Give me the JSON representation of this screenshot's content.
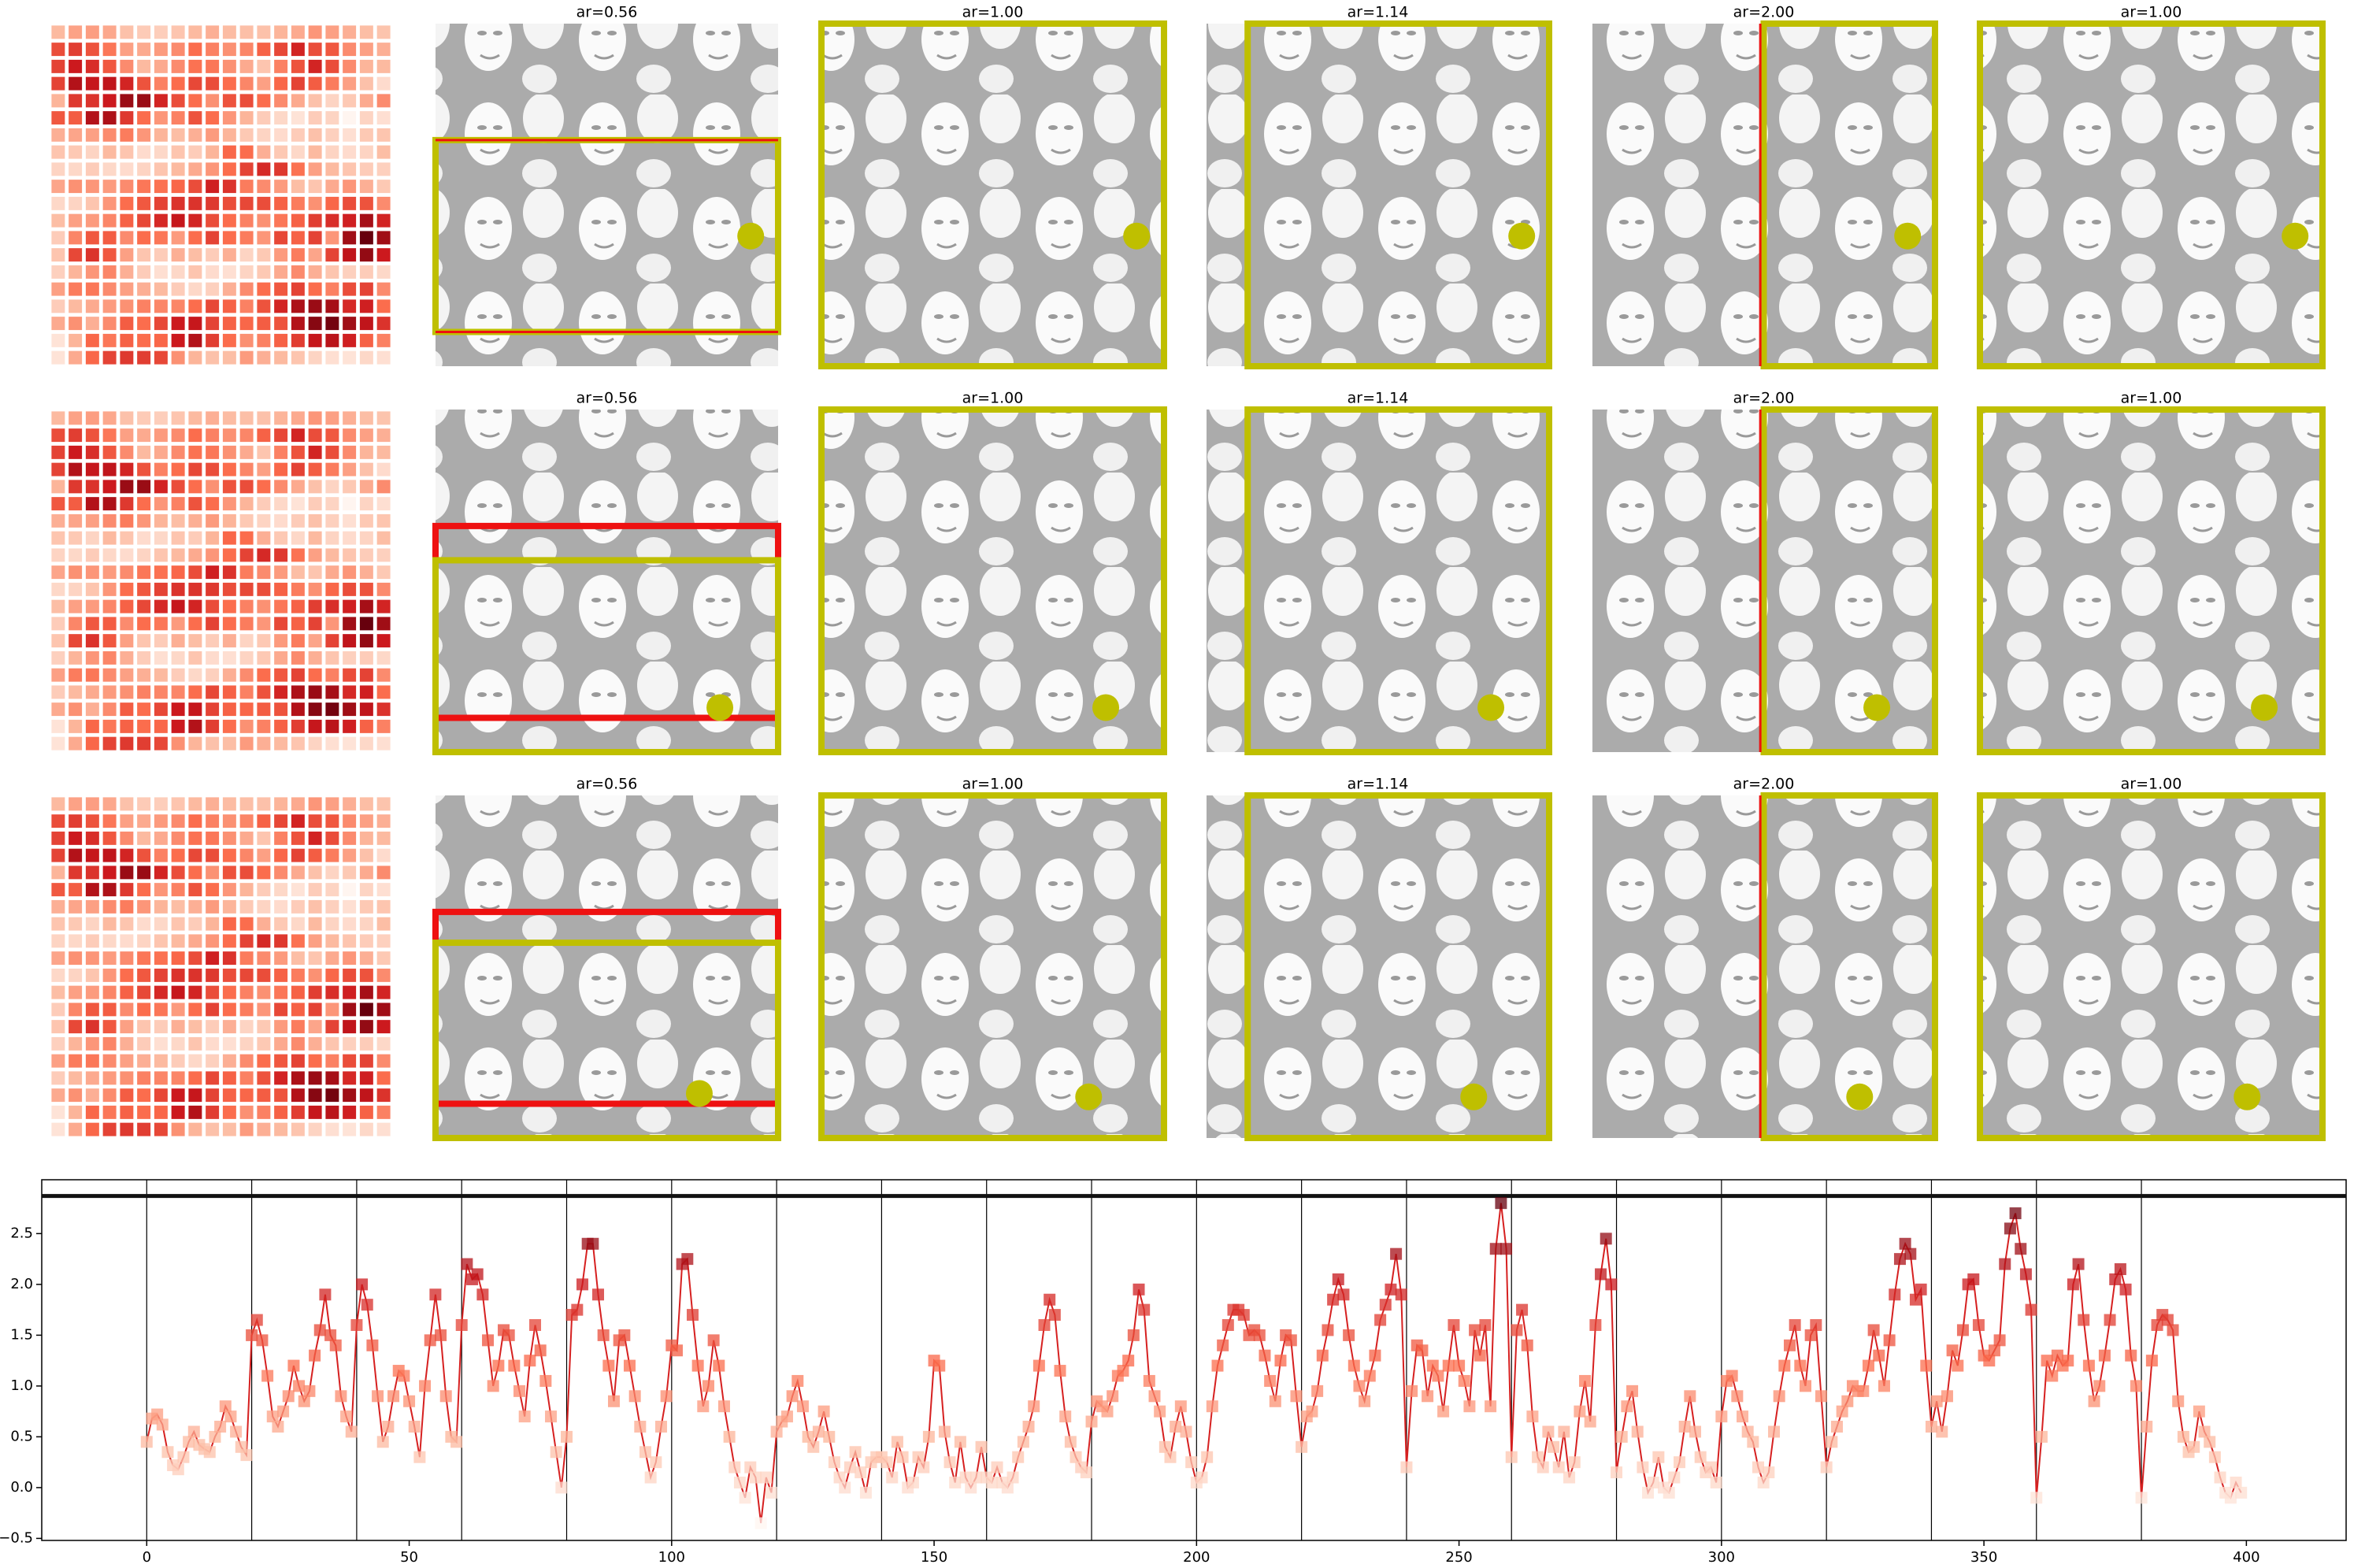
{
  "panel_rows": [
    {
      "titles": [
        "ar=0.56",
        "ar=1.00",
        "ar=1.14",
        "ar=2.00",
        "ar=1.00"
      ]
    },
    {
      "titles": [
        "ar=0.56",
        "ar=1.00",
        "ar=1.14",
        "ar=2.00",
        "ar=1.00"
      ]
    },
    {
      "titles": [
        "ar=0.56",
        "ar=1.00",
        "ar=1.14",
        "ar=2.00",
        "ar=1.00"
      ]
    }
  ],
  "chart_data": {
    "type": "line",
    "colormap": "Reds",
    "line_color": "#d62020",
    "hline": 2.87,
    "vlines": [
      0,
      20,
      40,
      60,
      80,
      100,
      120,
      140,
      160,
      180,
      200,
      220,
      240,
      260,
      280,
      300,
      320,
      340,
      360,
      380
    ],
    "xlim": [
      -20,
      419
    ],
    "ylim": [
      -0.52,
      3.03
    ],
    "xticks": [
      0,
      50,
      100,
      150,
      200,
      250,
      300,
      350,
      400
    ],
    "yticks": [
      {
        "value": -0.5,
        "label": "−0.5"
      },
      {
        "value": 0,
        "label": "0.0"
      },
      0.5,
      {
        "value": 1,
        "label": "1.0"
      },
      1.5,
      {
        "value": 2,
        "label": "2.0"
      },
      2.5
    ],
    "x": [
      0,
      1,
      2,
      3,
      4,
      5,
      6,
      7,
      8,
      9,
      10,
      11,
      12,
      13,
      14,
      15,
      16,
      17,
      18,
      19,
      20,
      21,
      22,
      23,
      24,
      25,
      26,
      27,
      28,
      29,
      30,
      31,
      32,
      33,
      34,
      35,
      36,
      37,
      38,
      39,
      40,
      41,
      42,
      43,
      44,
      45,
      46,
      47,
      48,
      49,
      50,
      51,
      52,
      53,
      54,
      55,
      56,
      57,
      58,
      59,
      60,
      61,
      62,
      63,
      64,
      65,
      66,
      67,
      68,
      69,
      70,
      71,
      72,
      73,
      74,
      75,
      76,
      77,
      78,
      79,
      80,
      81,
      82,
      83,
      84,
      85,
      86,
      87,
      88,
      89,
      90,
      91,
      92,
      93,
      94,
      95,
      96,
      97,
      98,
      99,
      100,
      101,
      102,
      103,
      104,
      105,
      106,
      107,
      108,
      109,
      110,
      111,
      112,
      113,
      114,
      115,
      116,
      117,
      118,
      119,
      120,
      121,
      122,
      123,
      124,
      125,
      126,
      127,
      128,
      129,
      130,
      131,
      132,
      133,
      134,
      135,
      136,
      137,
      138,
      139,
      140,
      141,
      142,
      143,
      144,
      145,
      146,
      147,
      148,
      149,
      150,
      151,
      152,
      153,
      154,
      155,
      156,
      157,
      158,
      159,
      160,
      161,
      162,
      163,
      164,
      165,
      166,
      167,
      168,
      169,
      170,
      171,
      172,
      173,
      174,
      175,
      176,
      177,
      178,
      179,
      180,
      181,
      182,
      183,
      184,
      185,
      186,
      187,
      188,
      189,
      190,
      191,
      192,
      193,
      194,
      195,
      196,
      197,
      198,
      199,
      200,
      201,
      202,
      203,
      204,
      205,
      206,
      207,
      208,
      209,
      210,
      211,
      212,
      213,
      214,
      215,
      216,
      217,
      218,
      219,
      220,
      221,
      222,
      223,
      224,
      225,
      226,
      227,
      228,
      229,
      230,
      231,
      232,
      233,
      234,
      235,
      236,
      237,
      238,
      239,
      240,
      241,
      242,
      243,
      244,
      245,
      246,
      247,
      248,
      249,
      250,
      251,
      252,
      253,
      254,
      255,
      256,
      257,
      258,
      259,
      260,
      261,
      262,
      263,
      264,
      265,
      266,
      267,
      268,
      269,
      270,
      271,
      272,
      273,
      274,
      275,
      276,
      277,
      278,
      279,
      280,
      281,
      282,
      283,
      284,
      285,
      286,
      287,
      288,
      289,
      290,
      291,
      292,
      293,
      294,
      295,
      296,
      297,
      298,
      299,
      300,
      301,
      302,
      303,
      304,
      305,
      306,
      307,
      308,
      309,
      310,
      311,
      312,
      313,
      314,
      315,
      316,
      317,
      318,
      319,
      320,
      321,
      322,
      323,
      324,
      325,
      326,
      327,
      328,
      329,
      330,
      331,
      332,
      333,
      334,
      335,
      336,
      337,
      338,
      339,
      340,
      341,
      342,
      343,
      344,
      345,
      346,
      347,
      348,
      349,
      350,
      351,
      352,
      353,
      354,
      355,
      356,
      357,
      358,
      359,
      360,
      361,
      362,
      363,
      364,
      365,
      366,
      367,
      368,
      369,
      370,
      371,
      372,
      373,
      374,
      375,
      376,
      377,
      378,
      379,
      380,
      381,
      382,
      383,
      384,
      385,
      386,
      387,
      388,
      389,
      390,
      391,
      392,
      393,
      394,
      395,
      396,
      397,
      398,
      399
    ],
    "values": [
      0.45,
      0.68,
      0.72,
      0.62,
      0.35,
      0.22,
      0.18,
      0.3,
      0.45,
      0.55,
      0.42,
      0.38,
      0.35,
      0.5,
      0.6,
      0.8,
      0.7,
      0.55,
      0.4,
      0.32,
      1.5,
      1.65,
      1.45,
      1.1,
      0.7,
      0.6,
      0.75,
      0.9,
      1.2,
      1.0,
      0.85,
      0.95,
      1.3,
      1.55,
      1.9,
      1.5,
      1.4,
      0.9,
      0.7,
      0.55,
      1.6,
      2.0,
      1.8,
      1.4,
      0.9,
      0.45,
      0.6,
      0.9,
      1.15,
      1.1,
      0.85,
      0.6,
      0.3,
      1.0,
      1.45,
      1.9,
      1.5,
      0.9,
      0.5,
      0.45,
      1.6,
      2.2,
      2.05,
      2.1,
      1.9,
      1.45,
      1.0,
      1.2,
      1.55,
      1.5,
      1.2,
      0.95,
      0.7,
      1.25,
      1.6,
      1.35,
      1.05,
      0.7,
      0.35,
      0.0,
      0.5,
      1.7,
      1.75,
      2.0,
      2.4,
      2.4,
      1.9,
      1.5,
      1.2,
      0.85,
      1.45,
      1.5,
      1.2,
      0.9,
      0.6,
      0.35,
      0.1,
      0.25,
      0.6,
      0.9,
      1.4,
      1.35,
      2.2,
      2.25,
      1.7,
      1.2,
      0.8,
      1.0,
      1.45,
      1.2,
      0.8,
      0.5,
      0.2,
      0.05,
      -0.1,
      0.2,
      0.1,
      -0.35,
      0.1,
      -0.05,
      0.55,
      0.65,
      0.7,
      0.9,
      1.05,
      0.8,
      0.5,
      0.4,
      0.55,
      0.75,
      0.5,
      0.25,
      0.1,
      0.0,
      0.2,
      0.35,
      0.15,
      -0.05,
      0.25,
      0.3,
      0.3,
      0.25,
      0.1,
      0.45,
      0.3,
      0.0,
      0.05,
      0.3,
      0.2,
      0.5,
      1.25,
      1.2,
      0.55,
      0.25,
      0.05,
      0.45,
      0.1,
      0.0,
      0.1,
      0.4,
      0.1,
      0.05,
      0.2,
      0.05,
      0.0,
      0.1,
      0.3,
      0.45,
      0.6,
      0.8,
      1.2,
      1.6,
      1.85,
      1.7,
      1.15,
      0.7,
      0.45,
      0.3,
      0.2,
      0.15,
      0.65,
      0.85,
      0.8,
      0.75,
      0.9,
      1.1,
      1.15,
      1.25,
      1.5,
      1.95,
      1.75,
      1.05,
      0.9,
      0.75,
      0.4,
      0.3,
      0.6,
      0.8,
      0.55,
      0.25,
      0.05,
      0.1,
      0.3,
      0.8,
      1.2,
      1.4,
      1.6,
      1.75,
      1.75,
      1.7,
      1.5,
      1.55,
      1.5,
      1.3,
      1.05,
      0.85,
      1.25,
      1.5,
      1.45,
      0.9,
      0.4,
      0.7,
      0.75,
      0.95,
      1.3,
      1.55,
      1.85,
      2.05,
      1.9,
      1.5,
      1.2,
      1.0,
      0.85,
      1.1,
      1.3,
      1.65,
      1.8,
      1.95,
      2.3,
      1.9,
      0.2,
      0.95,
      1.4,
      1.35,
      0.9,
      1.2,
      1.1,
      0.75,
      1.2,
      1.6,
      1.2,
      1.05,
      0.8,
      1.55,
      1.3,
      1.6,
      0.8,
      2.35,
      2.8,
      2.35,
      0.3,
      1.55,
      1.75,
      1.4,
      0.7,
      0.3,
      0.2,
      0.55,
      0.4,
      0.2,
      0.55,
      0.1,
      0.25,
      0.75,
      1.05,
      0.65,
      1.6,
      2.1,
      2.45,
      2.0,
      0.15,
      0.5,
      0.8,
      0.95,
      0.55,
      0.2,
      -0.05,
      0.05,
      0.3,
      0.0,
      -0.05,
      0.1,
      0.25,
      0.6,
      0.9,
      0.55,
      0.3,
      0.15,
      0.2,
      0.05,
      0.7,
      1.05,
      1.1,
      0.9,
      0.7,
      0.55,
      0.45,
      0.2,
      0.05,
      0.15,
      0.55,
      0.9,
      1.2,
      1.4,
      1.6,
      1.2,
      1.0,
      1.5,
      1.6,
      0.9,
      0.2,
      0.45,
      0.6,
      0.75,
      0.85,
      1.0,
      0.95,
      0.95,
      1.2,
      1.55,
      1.3,
      1.0,
      1.45,
      1.9,
      2.25,
      2.4,
      2.3,
      1.85,
      1.95,
      1.2,
      0.6,
      0.85,
      0.55,
      0.9,
      1.35,
      1.2,
      1.55,
      2.0,
      2.05,
      1.6,
      1.3,
      1.25,
      1.35,
      1.45,
      2.2,
      2.55,
      2.7,
      2.35,
      2.1,
      1.75,
      -0.1,
      0.5,
      1.25,
      1.1,
      1.3,
      1.2,
      1.25,
      2.0,
      2.2,
      1.65,
      1.2,
      0.85,
      1.0,
      1.3,
      1.65,
      2.05,
      2.15,
      1.95,
      1.3,
      1.0,
      -0.1,
      0.6,
      1.25,
      1.6,
      1.7,
      1.65,
      1.55,
      0.85,
      0.5,
      0.35,
      0.4,
      0.75,
      0.55,
      0.45,
      0.3,
      0.1,
      -0.05,
      -0.1,
      0.05,
      -0.05
    ]
  }
}
